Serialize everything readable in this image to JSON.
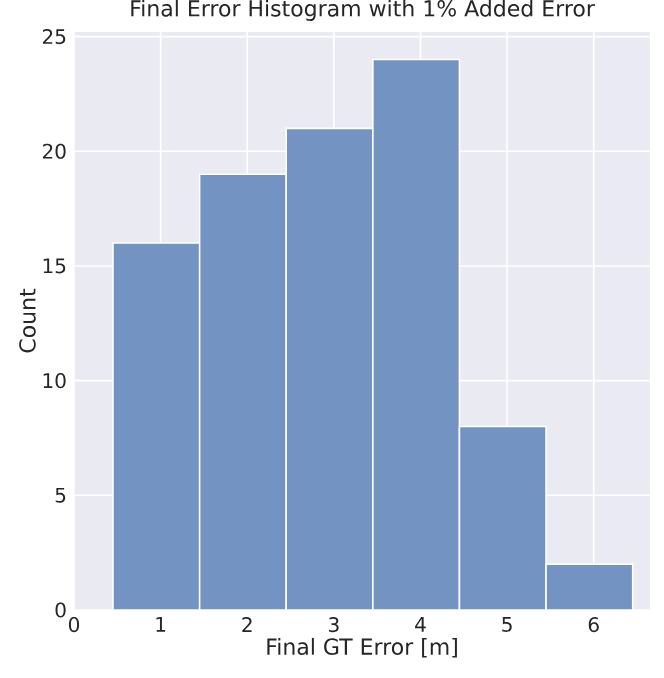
{
  "chart_data": {
    "type": "histogram",
    "title": "Final Error Histogram with 1% Added Error",
    "xlabel": "Final GT Error [m]",
    "ylabel": "Count",
    "bins": [
      0.45,
      1.45,
      2.45,
      3.45,
      4.45,
      5.45,
      6.45
    ],
    "values": [
      16,
      19,
      21,
      24,
      8,
      2
    ],
    "color": "#7393c3",
    "xlim": [
      0,
      6.65
    ],
    "ylim": [
      0,
      25.2
    ],
    "xticks": [
      0,
      1,
      2,
      3,
      4,
      5,
      6
    ],
    "yticks": [
      0,
      5,
      10,
      15,
      20,
      25
    ],
    "grid": true
  }
}
